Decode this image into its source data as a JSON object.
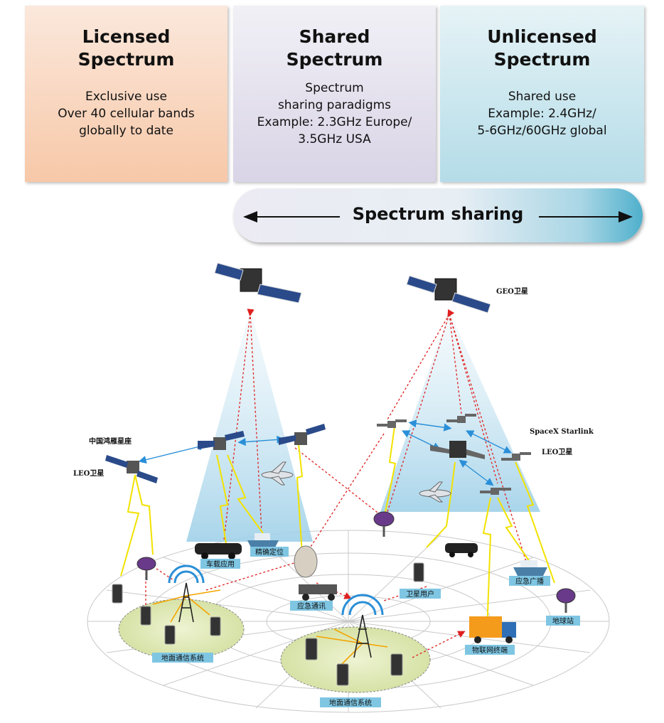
{
  "boxes": {
    "licensed": {
      "title": "Licensed\nSpectrum",
      "body": "Exclusive use\nOver 40 cellular bands\nglobally to date"
    },
    "shared": {
      "title": "Shared\nSpectrum",
      "body": "Spectrum\nsharing paradigms\nExample: 2.3GHz Europe/\n3.5GHz USA"
    },
    "unlicensed": {
      "title": "Unlicensed\nSpectrum",
      "body": "Shared use\nExample: 2.4GHz/\n5-6GHz/60GHz global"
    }
  },
  "pill": {
    "label": "Spectrum sharing"
  },
  "diagram": {
    "geo_label": "GEO卫星",
    "starlink_label": "SpaceX Starlink",
    "leo_right_label": "LEO卫星",
    "hongyan_label": "中国鸿雁星座",
    "leo_left_label": "LEO卫星",
    "tags": {
      "vehicle": "车载应用",
      "positioning": "精确定位",
      "emergency_comm": "应急通讯",
      "sat_user": "卫星用户",
      "emergency_broadcast": "应急广播",
      "earth_station": "地球站",
      "iot": "物联网终端",
      "ground_left": "地面通信系统",
      "ground_center": "地面通信系统"
    }
  }
}
